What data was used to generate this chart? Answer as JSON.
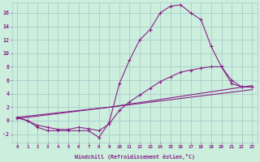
{
  "background_color": "#cceedd",
  "grid_color": "#aacccc",
  "line_color": "#882288",
  "xlabel": "Windchill (Refroidissement éolien,°C)",
  "xlim": [
    -0.5,
    23.5
  ],
  "ylim": [
    -3.2,
    17.5
  ],
  "xtick_labels": [
    "0",
    "1",
    "2",
    "3",
    "4",
    "5",
    "6",
    "7",
    "8",
    "9",
    "10",
    "11",
    "12",
    "13",
    "14",
    "15",
    "16",
    "17",
    "18",
    "19",
    "20",
    "21",
    "22",
    "23"
  ],
  "ytick_values": [
    -2,
    0,
    2,
    4,
    6,
    8,
    10,
    12,
    14,
    16
  ],
  "series": [
    {
      "x": [
        0,
        1,
        2,
        3,
        4,
        5,
        6,
        7,
        8,
        9,
        10,
        11,
        12,
        13,
        14,
        15,
        16,
        17,
        18,
        19,
        20,
        21,
        22,
        23
      ],
      "y": [
        0.5,
        0.0,
        -1.0,
        -1.5,
        -1.5,
        -1.5,
        -1.5,
        -1.5,
        -2.5,
        -0.3,
        5.5,
        9.0,
        12.0,
        13.5,
        16.0,
        17.0,
        17.2,
        16.0,
        15.0,
        11.0,
        8.0,
        5.5,
        5.0,
        5.0
      ],
      "marker": "+"
    },
    {
      "x": [
        0,
        1,
        2,
        3,
        4,
        5,
        6,
        7,
        8,
        9,
        10,
        11,
        12,
        13,
        14,
        15,
        16,
        17,
        18,
        19,
        20,
        21,
        22,
        23
      ],
      "y": [
        0.4,
        0.0,
        -0.7,
        -1.0,
        -1.3,
        -1.3,
        -1.0,
        -1.2,
        -1.5,
        -0.5,
        1.5,
        2.8,
        3.8,
        4.8,
        5.8,
        6.5,
        7.2,
        7.5,
        7.8,
        8.0,
        8.0,
        6.0,
        5.0,
        5.0
      ],
      "marker": "+"
    },
    {
      "x": [
        0,
        9,
        23
      ],
      "y": [
        0.5,
        2.0,
        5.2
      ],
      "marker": null
    },
    {
      "x": [
        0,
        23
      ],
      "y": [
        0.3,
        4.6
      ],
      "marker": null
    }
  ]
}
